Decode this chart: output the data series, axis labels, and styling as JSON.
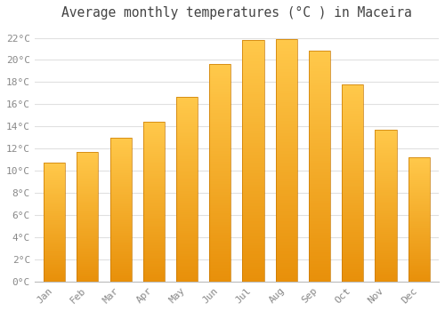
{
  "title": "Average monthly temperatures (°C ) in Maceira",
  "months": [
    "Jan",
    "Feb",
    "Mar",
    "Apr",
    "May",
    "Jun",
    "Jul",
    "Aug",
    "Sep",
    "Oct",
    "Nov",
    "Dec"
  ],
  "temperatures": [
    10.7,
    11.7,
    13.0,
    14.4,
    16.7,
    19.6,
    21.8,
    21.9,
    20.8,
    17.8,
    13.7,
    11.2
  ],
  "bar_color_top": "#FFC84A",
  "bar_color_bottom": "#E8900A",
  "bar_edge_color": "#C87800",
  "ylim": [
    0,
    23
  ],
  "ytick_step": 2,
  "background_color": "#ffffff",
  "grid_color": "#e0e0e0",
  "tick_label_color": "#888888",
  "title_color": "#444444",
  "title_fontsize": 10.5,
  "tick_fontsize": 8,
  "font_family": "monospace"
}
